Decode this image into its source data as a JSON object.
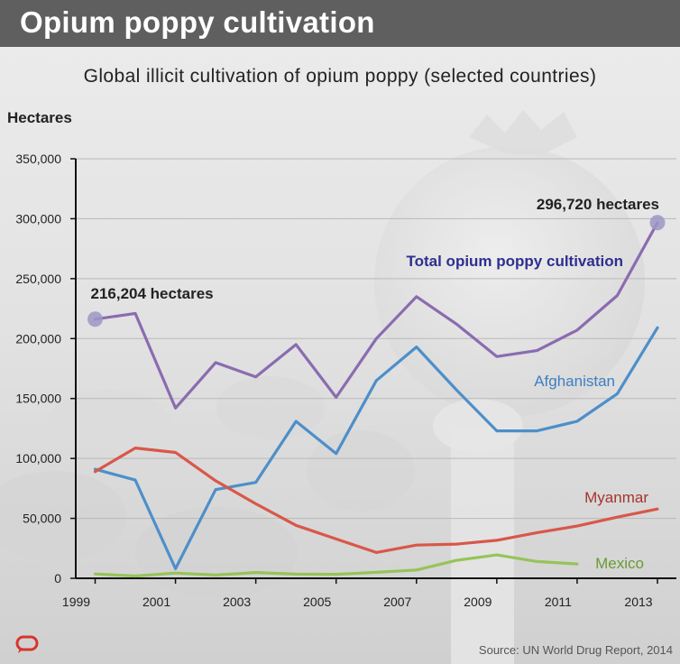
{
  "header": {
    "title": "Opium poppy cultivation"
  },
  "footer": {
    "source": "Source: UN World Drug Report, 2014"
  },
  "colors": {
    "total": "#8b6bb0",
    "afghanistan": "#4d8fc9",
    "myanmar": "#d9574a",
    "mexico": "#96c458",
    "total_label": "#2e2f8f",
    "afghanistan_label": "#3d7fc1",
    "myanmar_label": "#a6342e",
    "mexico_label": "#6a9a34",
    "marker": "#9b98c4"
  },
  "chart_data": {
    "type": "line",
    "subtitle": "Global illicit cultivation of opium poppy (selected countries)",
    "ylabel": "Hectares",
    "xlabel": "",
    "ylim": [
      0,
      350000
    ],
    "yticks": [
      0,
      50000,
      100000,
      150000,
      200000,
      250000,
      300000,
      350000
    ],
    "ytick_labels": [
      "0",
      "50,000",
      "100,000",
      "150,000",
      "200,000",
      "250,000",
      "300,000",
      "350,000"
    ],
    "x": [
      1999,
      2000,
      2001,
      2002,
      2003,
      2004,
      2005,
      2006,
      2007,
      2008,
      2009,
      2010,
      2011,
      2012,
      2013
    ],
    "xticks": [
      1999,
      2001,
      2003,
      2005,
      2007,
      2009,
      2011,
      2013
    ],
    "xtick_labels": [
      "1999",
      "2001",
      "2003",
      "2005",
      "2007",
      "2009",
      "2011",
      "2013"
    ],
    "grid": "horizontal",
    "series": [
      {
        "key": "total",
        "name": "Total opium poppy cultivation",
        "values": [
          216204,
          221000,
          142000,
          180000,
          168000,
          195000,
          151000,
          200000,
          235000,
          212000,
          185000,
          190000,
          207000,
          236000,
          296720
        ]
      },
      {
        "key": "afghanistan",
        "name": "Afghanistan",
        "values": [
          91000,
          82000,
          8000,
          74000,
          80000,
          131000,
          104000,
          165000,
          193000,
          157000,
          123000,
          123000,
          131000,
          154000,
          209000
        ]
      },
      {
        "key": "myanmar",
        "name": "Myanmar",
        "values": [
          89000,
          108700,
          105000,
          81400,
          62200,
          44200,
          32800,
          21500,
          27700,
          28500,
          31700,
          38100,
          43600,
          51000,
          57800
        ]
      },
      {
        "key": "mexico",
        "name": "Mexico",
        "values": [
          3600,
          1900,
          4400,
          2700,
          4800,
          3500,
          3300,
          5000,
          6900,
          15000,
          19500,
          14000,
          12000,
          null,
          null
        ]
      }
    ],
    "annotations": [
      {
        "text": "216,204 hectares",
        "x": 1999,
        "y": 216204
      },
      {
        "text": "296,720 hectares",
        "x": 2013,
        "y": 296720
      }
    ]
  }
}
